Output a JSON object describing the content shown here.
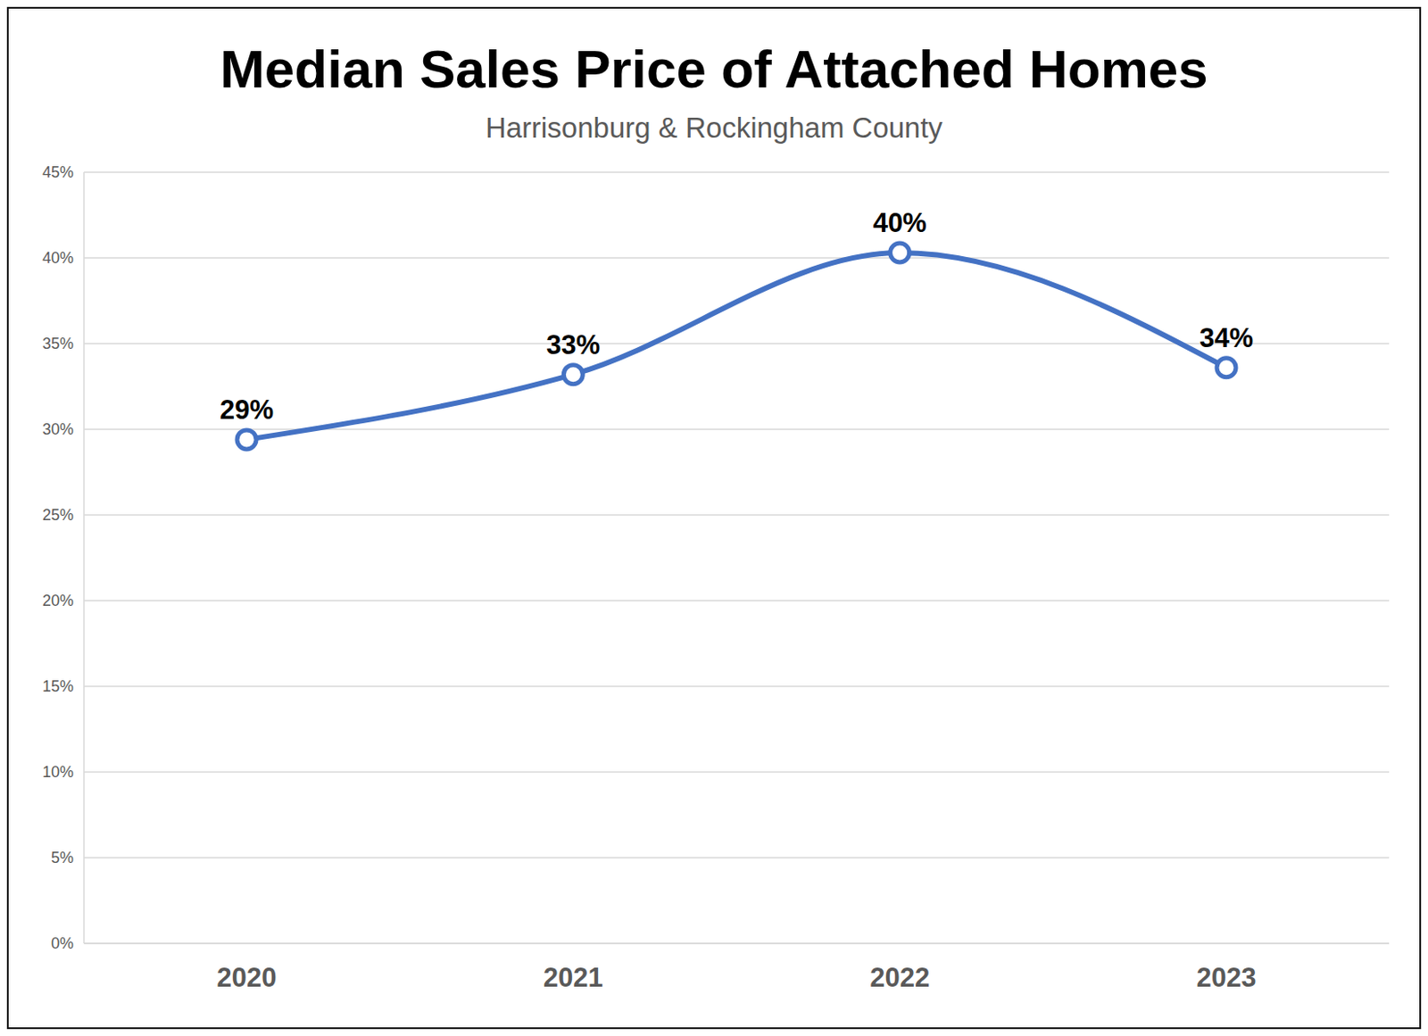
{
  "chart_data": {
    "type": "line",
    "title": "Median Sales Price of Attached Homes",
    "subtitle": "Harrisonburg & Rockingham County",
    "categories": [
      "2020",
      "2021",
      "2022",
      "2023"
    ],
    "values": [
      29.4,
      33.2,
      40.3,
      33.6
    ],
    "value_labels": [
      "29%",
      "33%",
      "40%",
      "34%"
    ],
    "color": "#4472c4",
    "marker": "circle",
    "line_style": "solid",
    "data_labels": true,
    "ylim": [
      0,
      45
    ],
    "yticks": [
      {
        "value": 0,
        "label": "0%"
      },
      {
        "value": 5,
        "label": "5%"
      },
      {
        "value": 10,
        "label": "10%"
      },
      {
        "value": 15,
        "label": "15%"
      },
      {
        "value": 20,
        "label": "20%"
      },
      {
        "value": 25,
        "label": "25%"
      },
      {
        "value": 30,
        "label": "30%"
      },
      {
        "value": 35,
        "label": "35%"
      },
      {
        "value": 40,
        "label": "40%"
      },
      {
        "value": 45,
        "label": "45%"
      }
    ],
    "grid": true
  }
}
